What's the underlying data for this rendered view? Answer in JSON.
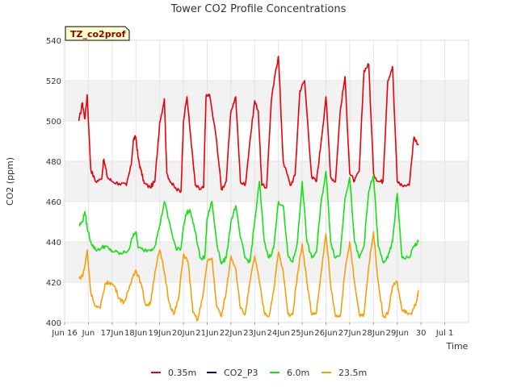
{
  "chart_data": {
    "type": "line",
    "title": "Tower CO2 Profile Concentrations",
    "xlabel": "Time",
    "ylabel": "CO2 (ppm)",
    "site_label": "TZ_co2prof",
    "xlim": [
      15,
      32
    ],
    "ylim": [
      400,
      540
    ],
    "x_ticks": [
      {
        "value": 15,
        "label": "Jun 16"
      },
      {
        "value": 16,
        "label": "Jun"
      },
      {
        "value": 17,
        "label": "17Jun"
      },
      {
        "value": 18,
        "label": "18Jun"
      },
      {
        "value": 19,
        "label": "19Jun"
      },
      {
        "value": 20,
        "label": "20Jun"
      },
      {
        "value": 21,
        "label": "21Jun"
      },
      {
        "value": 22,
        "label": "22Jun"
      },
      {
        "value": 23,
        "label": "23Jun"
      },
      {
        "value": 24,
        "label": "24Jun"
      },
      {
        "value": 25,
        "label": "25Jun"
      },
      {
        "value": 26,
        "label": "26Jun"
      },
      {
        "value": 27,
        "label": "27Jun"
      },
      {
        "value": 28,
        "label": "28Jun"
      },
      {
        "value": 29,
        "label": "29Jun"
      },
      {
        "value": 30,
        "label": "30"
      },
      {
        "value": 31,
        "label": "Jul 1"
      }
    ],
    "y_ticks": [
      400,
      420,
      440,
      460,
      480,
      500,
      520,
      540
    ],
    "grid": true,
    "legend_position": "bottom",
    "series": [
      {
        "name": "0.35m",
        "color": "#e8000b",
        "x": [
          15.6,
          15.75,
          15.85,
          15.95,
          16.1,
          16.3,
          16.55,
          16.65,
          16.8,
          17.0,
          17.3,
          17.6,
          17.8,
          17.9,
          18.0,
          18.1,
          18.2,
          18.35,
          18.6,
          18.8,
          19.0,
          19.2,
          19.3,
          19.5,
          19.7,
          19.9,
          20.0,
          20.15,
          20.3,
          20.5,
          20.7,
          20.85,
          20.95,
          21.1,
          21.4,
          21.6,
          21.8,
          22.0,
          22.2,
          22.4,
          22.6,
          22.8,
          23.0,
          23.15,
          23.3,
          23.5,
          23.7,
          23.9,
          24.0,
          24.2,
          24.5,
          24.7,
          24.9,
          25.1,
          25.4,
          25.6,
          25.8,
          26.0,
          26.2,
          26.4,
          26.6,
          26.8,
          27.0,
          27.2,
          27.4,
          27.6,
          27.8,
          28.0,
          28.2,
          28.4,
          28.6,
          28.8,
          29.0,
          29.2,
          29.5,
          29.7,
          29.9
        ],
        "values": [
          500,
          509,
          501,
          513,
          476,
          470,
          471,
          481,
          472,
          470,
          469,
          468,
          478,
          491,
          492,
          481,
          476,
          469,
          467,
          470,
          499,
          511,
          474,
          469,
          466,
          465,
          500,
          512,
          493,
          468,
          466,
          467,
          512,
          513,
          490,
          466,
          470,
          505,
          512,
          470,
          468,
          490,
          510,
          505,
          468,
          467,
          510,
          526,
          532,
          480,
          468,
          473,
          515,
          520,
          472,
          470,
          490,
          512,
          472,
          470,
          505,
          522,
          474,
          470,
          475,
          525,
          528,
          474,
          470,
          470,
          520,
          527,
          470,
          468,
          468,
          492,
          488
        ]
      },
      {
        "name": "CO2_P3",
        "color": "#00008b",
        "x": [],
        "values": []
      },
      {
        "name": "6.0m",
        "color": "#16e016",
        "x": [
          15.6,
          15.75,
          15.85,
          15.95,
          16.1,
          16.3,
          16.55,
          16.7,
          16.9,
          17.1,
          17.4,
          17.7,
          17.9,
          18.0,
          18.1,
          18.3,
          18.6,
          18.8,
          19.0,
          19.2,
          19.5,
          19.7,
          19.9,
          20.0,
          20.15,
          20.3,
          20.5,
          20.7,
          20.9,
          21.0,
          21.2,
          21.4,
          21.6,
          21.8,
          22.0,
          22.2,
          22.4,
          22.6,
          22.8,
          23.0,
          23.2,
          23.4,
          23.6,
          23.8,
          24.0,
          24.2,
          24.4,
          24.6,
          24.8,
          25.0,
          25.2,
          25.4,
          25.6,
          25.8,
          26.0,
          26.2,
          26.4,
          26.6,
          26.8,
          27.0,
          27.2,
          27.4,
          27.6,
          27.8,
          28.0,
          28.2,
          28.4,
          28.6,
          28.8,
          29.0,
          29.2,
          29.5,
          29.7,
          29.9
        ],
        "values": [
          448,
          450,
          455,
          447,
          440,
          436,
          437,
          438,
          436,
          435,
          434,
          436,
          444,
          445,
          437,
          436,
          436,
          438,
          448,
          460,
          445,
          436,
          437,
          448,
          455,
          455,
          445,
          432,
          432,
          452,
          460,
          440,
          429,
          432,
          450,
          458,
          442,
          432,
          430,
          450,
          470,
          440,
          432,
          437,
          460,
          458,
          433,
          430,
          440,
          470,
          440,
          432,
          435,
          460,
          475,
          440,
          432,
          434,
          462,
          472,
          440,
          432,
          438,
          465,
          473,
          438,
          430,
          432,
          440,
          464,
          432,
          432,
          438,
          440
        ]
      },
      {
        "name": "23.5m",
        "color": "#f5a00a",
        "x": [
          15.6,
          15.75,
          15.85,
          15.95,
          16.1,
          16.3,
          16.5,
          16.7,
          16.9,
          17.1,
          17.3,
          17.5,
          17.7,
          17.9,
          18.0,
          18.2,
          18.4,
          18.6,
          18.8,
          19.0,
          19.2,
          19.4,
          19.6,
          19.8,
          20.0,
          20.2,
          20.4,
          20.6,
          20.8,
          21.0,
          21.2,
          21.4,
          21.6,
          21.8,
          22.0,
          22.2,
          22.4,
          22.6,
          22.8,
          23.0,
          23.2,
          23.4,
          23.6,
          23.8,
          24.0,
          24.2,
          24.4,
          24.6,
          24.8,
          25.0,
          25.2,
          25.4,
          25.6,
          25.8,
          26.0,
          26.2,
          26.4,
          26.6,
          26.8,
          27.0,
          27.2,
          27.4,
          27.6,
          27.8,
          28.0,
          28.2,
          28.4,
          28.6,
          28.8,
          29.0,
          29.2,
          29.4,
          29.6,
          29.8,
          29.9
        ],
        "values": [
          422,
          423,
          428,
          436,
          415,
          408,
          407,
          419,
          420,
          418,
          412,
          410,
          416,
          424,
          426,
          420,
          409,
          409,
          425,
          436,
          425,
          410,
          404,
          412,
          434,
          430,
          405,
          401,
          412,
          430,
          432,
          408,
          403,
          415,
          433,
          427,
          407,
          404,
          420,
          433,
          420,
          405,
          403,
          416,
          435,
          425,
          404,
          404,
          424,
          439,
          420,
          404,
          405,
          425,
          444,
          418,
          403,
          403,
          425,
          440,
          420,
          404,
          404,
          428,
          445,
          420,
          403,
          404,
          418,
          420,
          406,
          405,
          404,
          410,
          416
        ]
      }
    ]
  }
}
